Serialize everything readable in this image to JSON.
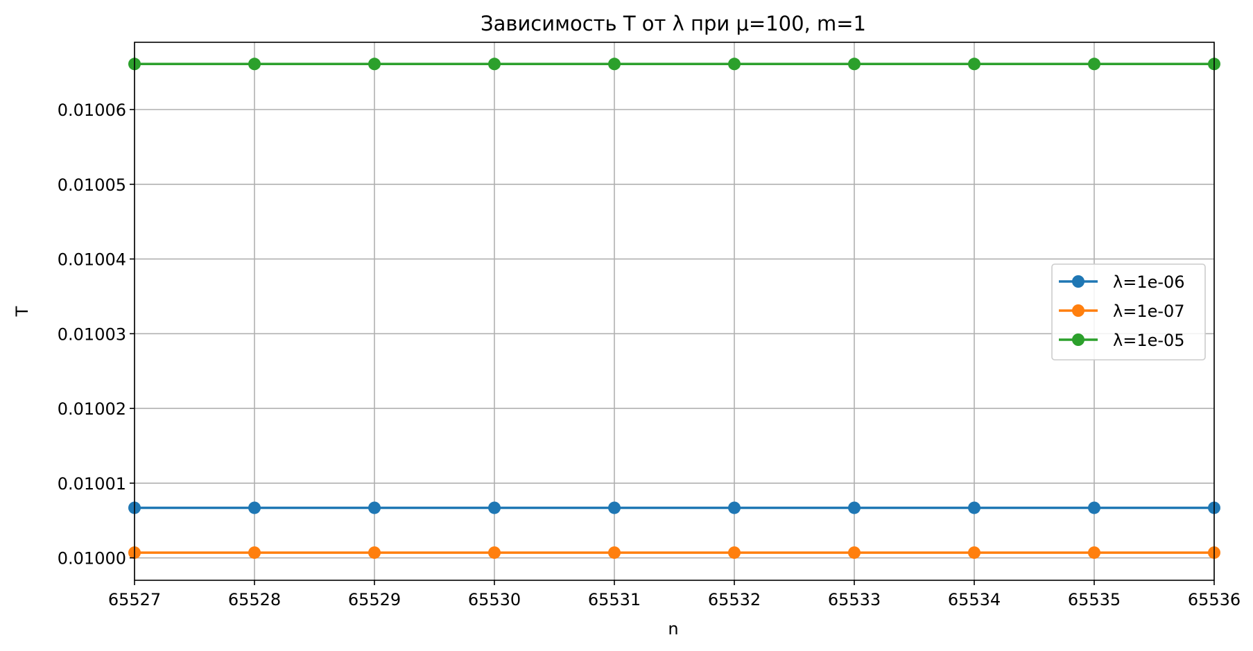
{
  "chart_data": {
    "type": "line",
    "title": "Зависимость T от λ при μ=100, m=1",
    "xlabel": "n",
    "ylabel": "T",
    "x": [
      65527,
      65528,
      65529,
      65530,
      65531,
      65532,
      65533,
      65534,
      65535,
      65536
    ],
    "xlim": [
      65527,
      65536
    ],
    "ylim": [
      0.009997,
      0.010069
    ],
    "x_ticks": [
      "65527",
      "65528",
      "65529",
      "65530",
      "65531",
      "65532",
      "65533",
      "65534",
      "65535",
      "65536"
    ],
    "y_ticks": [
      {
        "value": 0.01,
        "label": "0.01000"
      },
      {
        "value": 0.01001,
        "label": "0.01001"
      },
      {
        "value": 0.01002,
        "label": "0.01002"
      },
      {
        "value": 0.01003,
        "label": "0.01003"
      },
      {
        "value": 0.01004,
        "label": "0.01004"
      },
      {
        "value": 0.01005,
        "label": "0.01005"
      },
      {
        "value": 0.01006,
        "label": "0.01006"
      }
    ],
    "grid": true,
    "legend_position": "center-right",
    "series": [
      {
        "name": "λ=1e-06",
        "color": "#1f77b4",
        "values": [
          0.0100067,
          0.0100067,
          0.0100067,
          0.0100067,
          0.0100067,
          0.0100067,
          0.0100067,
          0.0100067,
          0.0100067,
          0.0100067
        ]
      },
      {
        "name": "λ=1e-07",
        "color": "#ff7f0e",
        "values": [
          0.0100007,
          0.0100007,
          0.0100007,
          0.0100007,
          0.0100007,
          0.0100007,
          0.0100007,
          0.0100007,
          0.0100007,
          0.0100007
        ]
      },
      {
        "name": "λ=1e-05",
        "color": "#2ca02c",
        "values": [
          0.0100661,
          0.0100661,
          0.0100661,
          0.0100661,
          0.0100661,
          0.0100661,
          0.0100661,
          0.0100661,
          0.0100661,
          0.0100661
        ]
      }
    ]
  }
}
